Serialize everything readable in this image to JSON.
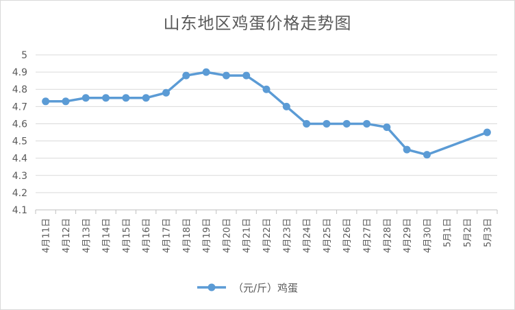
{
  "chart_data": {
    "type": "line",
    "title": "山东地区鸡蛋价格走势图",
    "categories": [
      "4月11日",
      "4月12日",
      "4月13日",
      "4月14日",
      "4月15日",
      "4月16日",
      "4月17日",
      "4月18日",
      "4月19日",
      "4月20日",
      "4月21日",
      "4月22日",
      "4月23日",
      "4月24日",
      "4月25日",
      "4月26日",
      "4月27日",
      "4月28日",
      "4月29日",
      "4月30日",
      "5月1日",
      "5月2日",
      "5月3日"
    ],
    "series": [
      {
        "name": "（元/斤）鸡蛋",
        "color": "#5b9bd5",
        "values": [
          4.73,
          4.73,
          4.75,
          4.75,
          4.75,
          4.75,
          4.78,
          4.88,
          4.9,
          4.88,
          4.88,
          4.8,
          4.7,
          4.6,
          4.6,
          4.6,
          4.6,
          4.58,
          4.45,
          4.42,
          null,
          null,
          4.55
        ]
      }
    ],
    "ylim": [
      4.1,
      5
    ],
    "yticks": [
      "4.1",
      "4.2",
      "4.3",
      "4.4",
      "4.5",
      "4.6",
      "4.7",
      "4.8",
      "4.9",
      "5"
    ],
    "grid": true,
    "legend_position": "bottom"
  }
}
